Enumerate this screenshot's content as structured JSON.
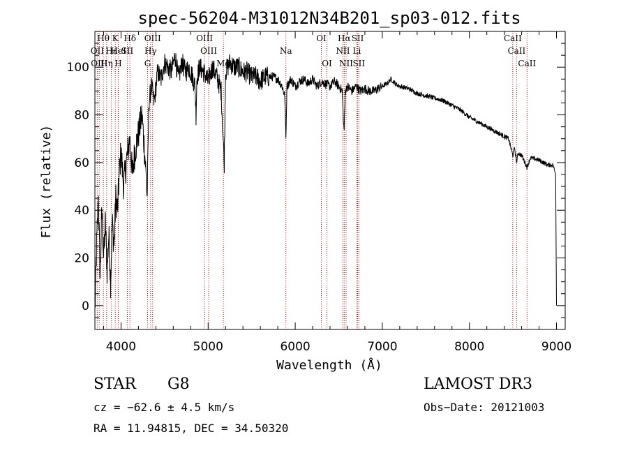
{
  "chart_data": {
    "type": "line",
    "title": "spec-56204-M31012N34B201_sp03-012.fits",
    "xlabel": "Wavelength (Å)",
    "ylabel": "Flux (relative)",
    "xlim": [
      3700,
      9100
    ],
    "ylim": [
      -10,
      115
    ],
    "xticks": [
      4000,
      5000,
      6000,
      7000,
      8000,
      9000
    ],
    "yticks": [
      0,
      20,
      40,
      60,
      80,
      100
    ],
    "grid": false,
    "series": [
      {
        "name": "spectrum",
        "x": [
          3700,
          3720,
          3740,
          3760,
          3780,
          3800,
          3820,
          3840,
          3860,
          3880,
          3900,
          3920,
          3940,
          3960,
          3980,
          4000,
          4030,
          4060,
          4100,
          4130,
          4160,
          4200,
          4240,
          4280,
          4300,
          4320,
          4350,
          4380,
          4420,
          4460,
          4500,
          4540,
          4580,
          4620,
          4660,
          4700,
          4740,
          4780,
          4820,
          4850,
          4861,
          4870,
          4900,
          4950,
          5000,
          5050,
          5100,
          5150,
          5175,
          5185,
          5200,
          5250,
          5300,
          5350,
          5400,
          5450,
          5500,
          5550,
          5600,
          5650,
          5700,
          5750,
          5800,
          5850,
          5880,
          5893,
          5905,
          5950,
          6000,
          6050,
          6100,
          6150,
          6200,
          6250,
          6300,
          6350,
          6400,
          6450,
          6500,
          6540,
          6555,
          6563,
          6575,
          6600,
          6650,
          6700,
          6750,
          6800,
          6850,
          6900,
          6950,
          7000,
          7050,
          7100,
          7150,
          7200,
          7300,
          7400,
          7500,
          7600,
          7700,
          7800,
          7900,
          8000,
          8100,
          8200,
          8300,
          8400,
          8450,
          8498,
          8520,
          8542,
          8560,
          8600,
          8662,
          8700,
          8800,
          8900,
          8960,
          8990,
          9000
        ],
        "y": [
          -2,
          25,
          45,
          12,
          40,
          20,
          35,
          15,
          30,
          10,
          35,
          25,
          45,
          40,
          55,
          65,
          50,
          60,
          70,
          55,
          65,
          72,
          80,
          60,
          45,
          85,
          92,
          85,
          98,
          95,
          102,
          100,
          98,
          105,
          95,
          102,
          98,
          100,
          96,
          92,
          80,
          95,
          100,
          98,
          94,
          100,
          96,
          90,
          68,
          60,
          98,
          102,
          100,
          100,
          98,
          98,
          96,
          96,
          94,
          96,
          96,
          96,
          95,
          92,
          88,
          70,
          92,
          95,
          92,
          94,
          95,
          93,
          95,
          92,
          94,
          93,
          92,
          94,
          92,
          90,
          76,
          74,
          90,
          92,
          90,
          92,
          90,
          91,
          90,
          90,
          91,
          92,
          93,
          95,
          93,
          92,
          91,
          89,
          88,
          87,
          86,
          84,
          82,
          79,
          77,
          75,
          73,
          71,
          70,
          63,
          66,
          60,
          64,
          63,
          58,
          62,
          61,
          59,
          59,
          55,
          0
        ]
      }
    ],
    "line_labels": [
      {
        "text": "Hθ",
        "x": 3797,
        "row": 1
      },
      {
        "text": "K",
        "x": 3934,
        "row": 1
      },
      {
        "text": "Hδ",
        "x": 4102,
        "row": 1
      },
      {
        "text": "OIII",
        "x": 4363,
        "row": 1
      },
      {
        "text": "OIII",
        "x": 4959,
        "row": 1
      },
      {
        "text": "OI",
        "x": 6300,
        "row": 1
      },
      {
        "text": "Hα",
        "x": 6563,
        "row": 1
      },
      {
        "text": "SII",
        "x": 6717,
        "row": 1
      },
      {
        "text": "CaII",
        "x": 8498,
        "row": 1
      },
      {
        "text": "OII",
        "x": 3727,
        "row": 2
      },
      {
        "text": "Hε",
        "x": 3889,
        "row": 2
      },
      {
        "text": "HeI",
        "x": 3970,
        "row": 2
      },
      {
        "text": "SII",
        "x": 4072,
        "row": 2
      },
      {
        "text": "Hγ",
        "x": 4340,
        "row": 2
      },
      {
        "text": "OIII",
        "x": 5007,
        "row": 2
      },
      {
        "text": "Na",
        "x": 5893,
        "row": 2
      },
      {
        "text": "NII",
        "x": 6548,
        "row": 2
      },
      {
        "text": "Li",
        "x": 6708,
        "row": 2
      },
      {
        "text": "CaII",
        "x": 8542,
        "row": 2
      },
      {
        "text": "OIII",
        "x": 3750,
        "row": 3
      },
      {
        "text": "Hη",
        "x": 3835,
        "row": 3
      },
      {
        "text": "H",
        "x": 3968,
        "row": 3
      },
      {
        "text": "G",
        "x": 4305,
        "row": 3
      },
      {
        "text": "Mg",
        "x": 5175,
        "row": 3
      },
      {
        "text": "OI",
        "x": 6364,
        "row": 3
      },
      {
        "text": "NII",
        "x": 6584,
        "row": 3
      },
      {
        "text": "SII",
        "x": 6731,
        "row": 3
      },
      {
        "text": "CaII",
        "x": 8662,
        "row": 3
      }
    ]
  },
  "info": {
    "object_class": "STAR",
    "subclass": "G8",
    "survey": "LAMOST DR3",
    "cz": "cz = −62.6 ± 4.5 km/s",
    "obs_date": "Obs−Date: 20121003",
    "radec": "RA =  11.94815, DEC =  34.50320"
  }
}
